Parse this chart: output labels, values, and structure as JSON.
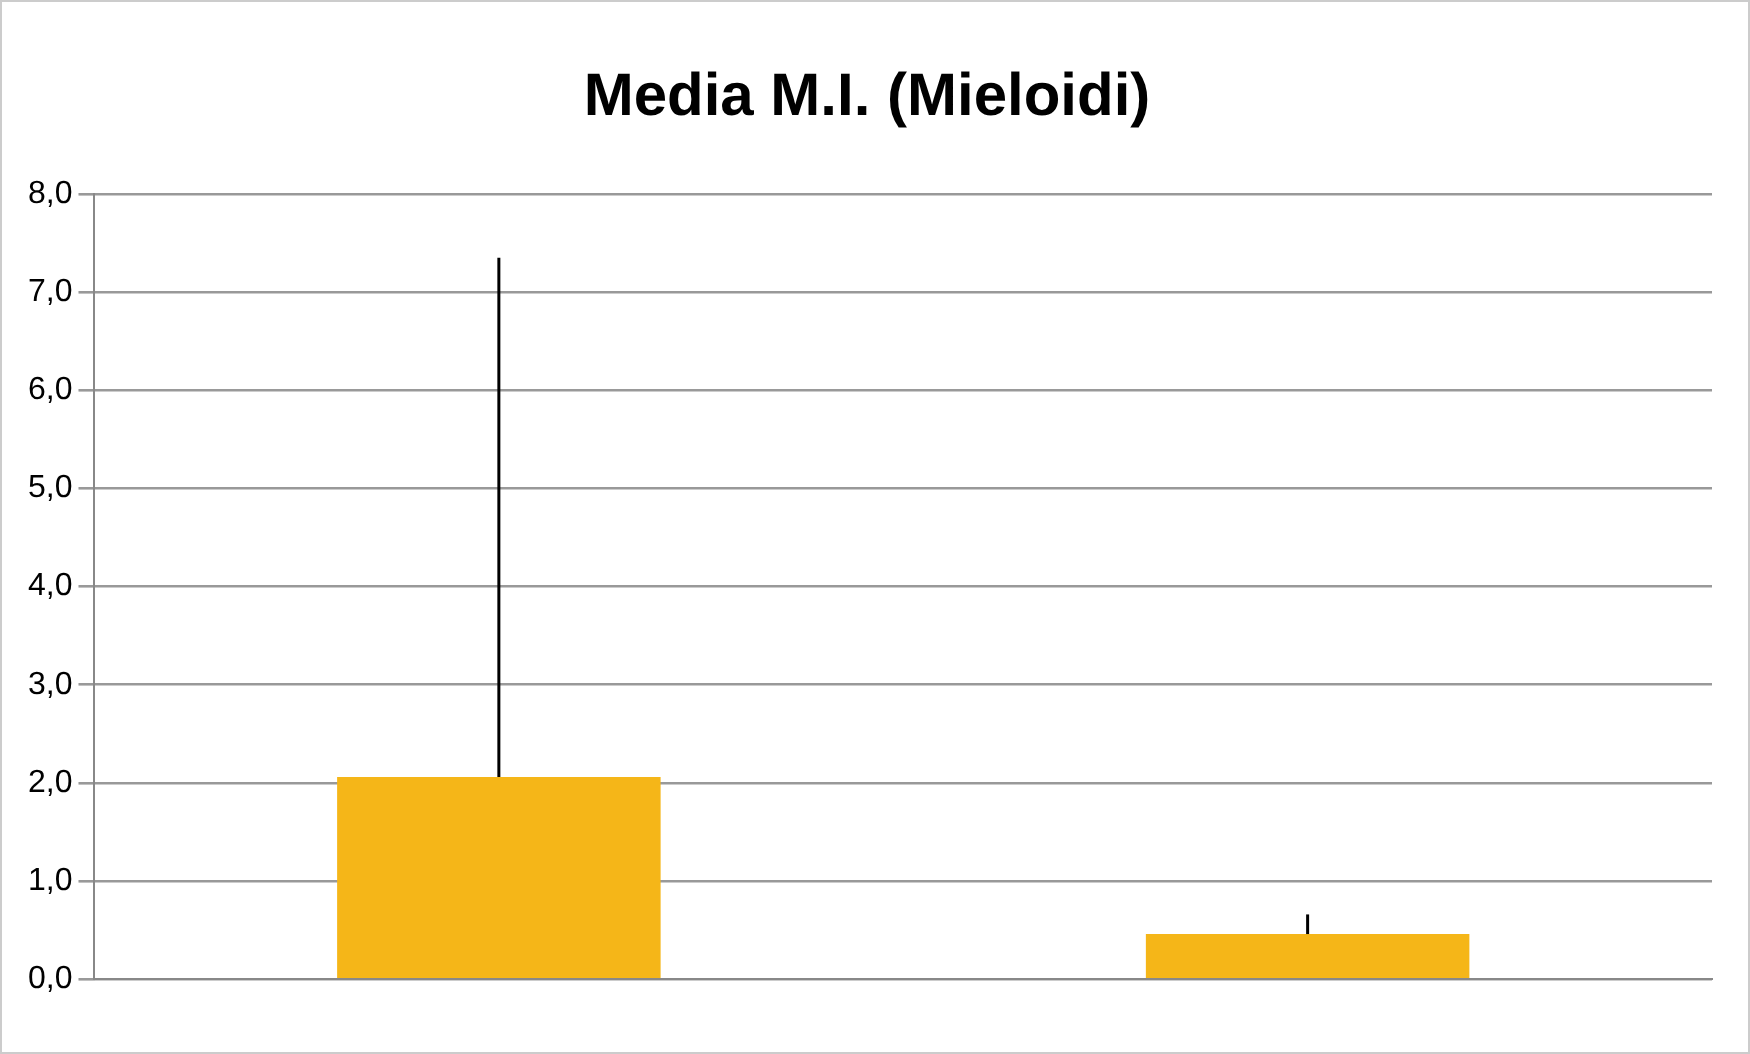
{
  "chart_data": {
    "type": "bar",
    "title": "Media M.I. (Mieloidi)",
    "categories": [
      null,
      null
    ],
    "values": [
      2.06,
      0.46
    ],
    "errors": [
      [
        2.06,
        7.35
      ],
      [
        0.46,
        0.66
      ]
    ],
    "color": "#f5b618",
    "ylim": [
      0,
      8
    ],
    "yticks": [
      {
        "value": 0,
        "label": "0,0"
      },
      {
        "value": 1,
        "label": "1,0"
      },
      {
        "value": 2,
        "label": "2,0"
      },
      {
        "value": 3,
        "label": "3,0"
      },
      {
        "value": 4,
        "label": "4,0"
      },
      {
        "value": 5,
        "label": "5,0"
      },
      {
        "value": 6,
        "label": "6,0"
      },
      {
        "value": 7,
        "label": "7,0"
      },
      {
        "value": 8,
        "label": "8,0"
      }
    ],
    "grid": "y",
    "legend": false
  }
}
